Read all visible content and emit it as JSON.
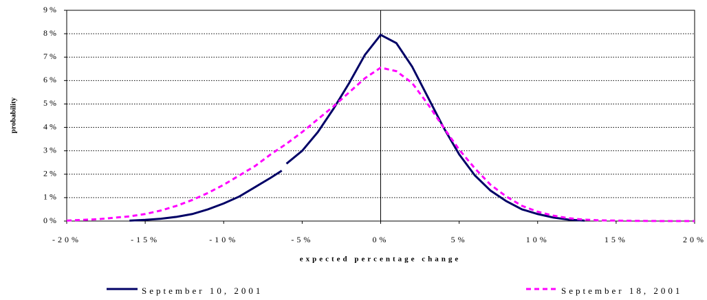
{
  "chart_data": {
    "type": "line",
    "x_label": "expected percentage change",
    "y_label": "probability",
    "xlim": [
      -20,
      20
    ],
    "xticks": [
      {
        "value": -20,
        "label": "-20%"
      },
      {
        "value": -15,
        "label": "-15%"
      },
      {
        "value": -10,
        "label": "-10%"
      },
      {
        "value": -5,
        "label": "-5%"
      },
      {
        "value": 0,
        "label": "0%"
      },
      {
        "value": 5,
        "label": "5%"
      },
      {
        "value": 10,
        "label": "10%"
      },
      {
        "value": 15,
        "label": "15%"
      },
      {
        "value": 20,
        "label": "20%"
      }
    ],
    "ylim": [
      0,
      9
    ],
    "yticks": [
      {
        "value": 0,
        "label": "0%"
      },
      {
        "value": 1,
        "label": "1%"
      },
      {
        "value": 2,
        "label": "2%"
      },
      {
        "value": 3,
        "label": "3%"
      },
      {
        "value": 4,
        "label": "4%"
      },
      {
        "value": 5,
        "label": "5%"
      },
      {
        "value": 6,
        "label": "6%"
      },
      {
        "value": 7,
        "label": "7%"
      },
      {
        "value": 8,
        "label": "8%"
      },
      {
        "value": 9,
        "label": "9%"
      }
    ],
    "grid": true,
    "legend": "bottom",
    "series": [
      {
        "name": "September 10, 2001",
        "color": "#000066",
        "dash": false,
        "x": [
          -16,
          -15,
          -14,
          -13,
          -12,
          -11,
          -10,
          -9,
          -8,
          -7,
          -6.3,
          -6.2,
          -6,
          -5,
          -4,
          -3,
          -2,
          -1,
          0,
          1,
          2,
          3,
          4,
          5,
          6,
          7,
          8,
          9,
          10,
          11,
          12,
          13
        ],
        "values": [
          0.02,
          0.05,
          0.1,
          0.18,
          0.3,
          0.5,
          0.75,
          1.05,
          1.45,
          1.85,
          2.15,
          null,
          2.45,
          3.0,
          3.8,
          4.8,
          5.9,
          7.1,
          7.95,
          7.6,
          6.6,
          5.3,
          4.0,
          2.85,
          1.95,
          1.3,
          0.85,
          0.5,
          0.3,
          0.15,
          0.06,
          0.02
        ]
      },
      {
        "name": "September 18, 2001",
        "color": "#ff00ff",
        "dash": true,
        "x": [
          -20,
          -18,
          -16,
          -15,
          -14,
          -13,
          -12,
          -11,
          -10,
          -9,
          -8,
          -7,
          -6,
          -5,
          -4,
          -3,
          -2,
          -1,
          0,
          1,
          2,
          3,
          4,
          5,
          6,
          7,
          8,
          9,
          10,
          11,
          12,
          13,
          14,
          15,
          16,
          18,
          20
        ],
        "values": [
          0.02,
          0.08,
          0.2,
          0.3,
          0.45,
          0.65,
          0.9,
          1.2,
          1.55,
          1.95,
          2.35,
          2.85,
          3.3,
          3.8,
          4.35,
          4.9,
          5.5,
          6.1,
          6.55,
          6.4,
          5.9,
          5.0,
          4.0,
          3.05,
          2.25,
          1.55,
          1.05,
          0.65,
          0.4,
          0.23,
          0.12,
          0.06,
          0.03,
          0.02,
          0.01,
          0,
          0
        ]
      }
    ]
  }
}
